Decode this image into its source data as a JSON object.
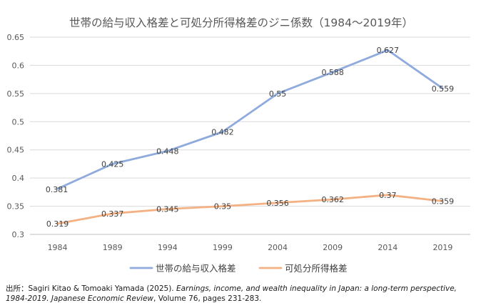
{
  "chart_data": {
    "type": "line",
    "title": "世帯の給与収入格差と可処分所得格差のジニ係数（1984～2019年）",
    "categories": [
      "1984",
      "1989",
      "1994",
      "1999",
      "2004",
      "2009",
      "2014",
      "2019"
    ],
    "ylim": [
      0.3,
      0.65
    ],
    "yticks": [
      "0.3",
      "0.35",
      "0.4",
      "0.45",
      "0.5",
      "0.55",
      "0.6",
      "0.65"
    ],
    "grid": true,
    "legend_position": "bottom",
    "series": [
      {
        "name": "世帯の給与収入格差",
        "color": "#8faadc",
        "values": [
          0.381,
          0.425,
          0.448,
          0.482,
          0.55,
          0.588,
          0.627,
          0.559
        ],
        "labels": [
          "0.381",
          "0.425",
          "0.448",
          "0.482",
          "0.55",
          "0.588",
          "0.627",
          "0.559"
        ]
      },
      {
        "name": "可処分所得格差",
        "color": "#f4b183",
        "values": [
          0.319,
          0.337,
          0.345,
          0.35,
          0.356,
          0.362,
          0.37,
          0.359
        ],
        "labels": [
          "0.319",
          "0.337",
          "0.345",
          "0.35",
          "0.356",
          "0.362",
          "0.37",
          "0.359"
        ]
      }
    ]
  },
  "source": {
    "prefix": "出所：Sagiri Kitao & Tomoaki Yamada (2025). ",
    "italic": "Earnings, income, and wealth inequality in Japan: a long-term perspective, 1984-2019. Japanese Economic Review",
    "suffix": ", Volume 76, pages 231-283."
  }
}
